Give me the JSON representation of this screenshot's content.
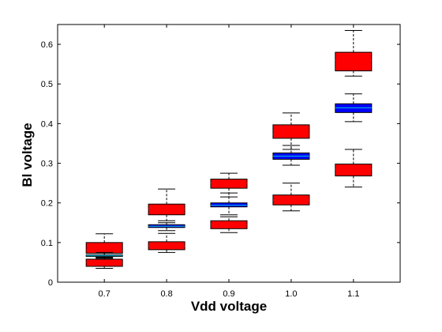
{
  "chart_data": {
    "type": "boxplot",
    "xlabel": "Vdd voltage",
    "ylabel": "Bl voltage",
    "categories": [
      "0.7",
      "0.8",
      "0.9",
      "1.0",
      "1.1"
    ],
    "ylim": [
      0,
      0.65
    ],
    "yticks": [
      "0",
      "0.1",
      "0.2",
      "0.3",
      "0.4",
      "0.5",
      "0.6"
    ],
    "grid": false,
    "legend": "none",
    "colors": {
      "red": "#ff0000",
      "blue": "#0000ff",
      "median_red": "#ff0000",
      "median_blue": "#00cccc"
    },
    "series": [
      {
        "color": "red",
        "boxes": [
          {
            "category": "0.7",
            "whisker_low": 0.06,
            "q1": 0.073,
            "median": 0.08,
            "q3": 0.1,
            "whisker_high": 0.122
          },
          {
            "category": "0.8",
            "whisker_low": 0.15,
            "q1": 0.17,
            "median": 0.185,
            "q3": 0.197,
            "whisker_high": 0.235
          },
          {
            "category": "0.9",
            "whisker_low": 0.215,
            "q1": 0.237,
            "median": 0.25,
            "q3": 0.26,
            "whisker_high": 0.275
          },
          {
            "category": "1.0",
            "whisker_low": 0.335,
            "q1": 0.363,
            "median": 0.373,
            "q3": 0.397,
            "whisker_high": 0.427
          },
          {
            "category": "1.1",
            "whisker_low": 0.52,
            "q1": 0.533,
            "median": 0.56,
            "q3": 0.58,
            "whisker_high": 0.635
          }
        ]
      },
      {
        "color": "blue",
        "boxes": [
          {
            "category": "0.7",
            "whisker_low": 0.063,
            "q1": 0.065,
            "median": 0.067,
            "q3": 0.069,
            "whisker_high": 0.075
          },
          {
            "category": "0.8",
            "whisker_low": 0.13,
            "q1": 0.138,
            "median": 0.141,
            "q3": 0.145,
            "whisker_high": 0.155
          },
          {
            "category": "0.9",
            "whisker_low": 0.17,
            "q1": 0.19,
            "median": 0.194,
            "q3": 0.2,
            "whisker_high": 0.225
          },
          {
            "category": "1.0",
            "whisker_low": 0.295,
            "q1": 0.31,
            "median": 0.318,
            "q3": 0.326,
            "whisker_high": 0.345
          },
          {
            "category": "1.1",
            "whisker_low": 0.405,
            "q1": 0.428,
            "median": 0.44,
            "q3": 0.45,
            "whisker_high": 0.475
          }
        ]
      },
      {
        "color": "red",
        "boxes": [
          {
            "category": "0.7",
            "whisker_low": 0.035,
            "q1": 0.04,
            "median": 0.05,
            "q3": 0.058,
            "whisker_high": 0.062
          },
          {
            "category": "0.8",
            "whisker_low": 0.075,
            "q1": 0.082,
            "median": 0.092,
            "q3": 0.102,
            "whisker_high": 0.123
          },
          {
            "category": "0.9",
            "whisker_low": 0.125,
            "q1": 0.135,
            "median": 0.145,
            "q3": 0.155,
            "whisker_high": 0.165
          },
          {
            "category": "1.0",
            "whisker_low": 0.18,
            "q1": 0.195,
            "median": 0.207,
            "q3": 0.22,
            "whisker_high": 0.25
          },
          {
            "category": "1.1",
            "whisker_low": 0.24,
            "q1": 0.268,
            "median": 0.285,
            "q3": 0.298,
            "whisker_high": 0.335
          }
        ]
      }
    ]
  }
}
